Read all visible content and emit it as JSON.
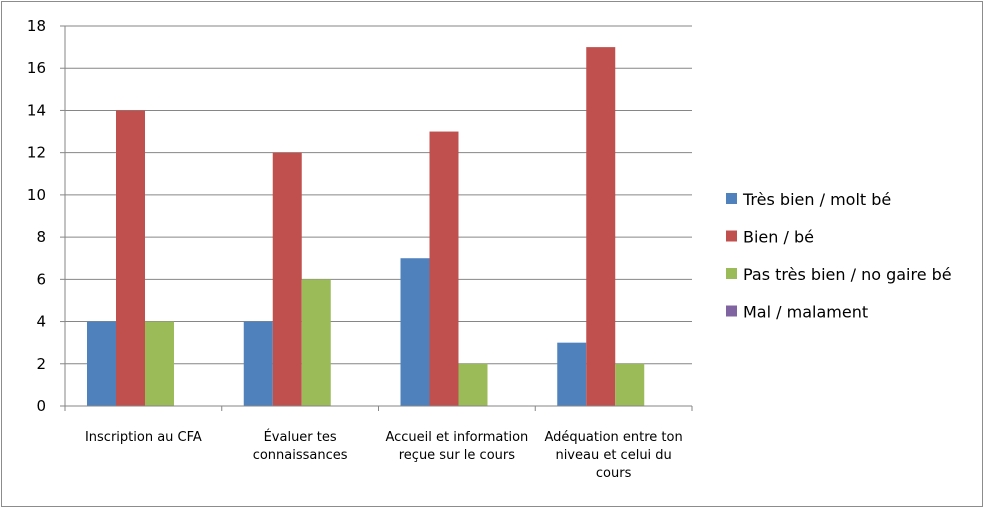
{
  "chart_data": {
    "type": "bar",
    "categories": [
      [
        "Inscription au CFA"
      ],
      [
        "Évaluer tes",
        "connaissances"
      ],
      [
        "Accueil et information",
        "reçue sur le cours"
      ],
      [
        "Adéquation entre ton",
        "niveau et celui du",
        "cours"
      ]
    ],
    "series": [
      {
        "name": "Très bien / molt bé",
        "color": "#4F81BD",
        "values": [
          4,
          4,
          7,
          3
        ]
      },
      {
        "name": "Bien / bé",
        "color": "#C0504D",
        "values": [
          14,
          12,
          13,
          17
        ]
      },
      {
        "name": "Pas très bien / no gaire bé",
        "color": "#9BBB59",
        "values": [
          4,
          6,
          2,
          2
        ]
      },
      {
        "name": "Mal / malament",
        "color": "#8064A2",
        "values": [
          0,
          0,
          0,
          0
        ]
      }
    ],
    "ylim": [
      0,
      18
    ],
    "yticks": [
      0,
      2,
      4,
      6,
      8,
      10,
      12,
      14,
      16,
      18
    ],
    "grid": true,
    "legend": "right"
  }
}
